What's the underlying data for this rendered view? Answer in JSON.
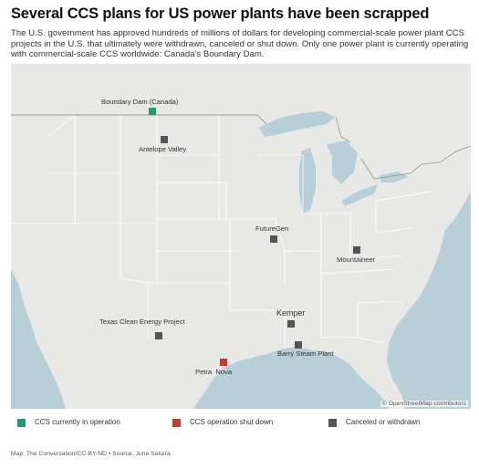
{
  "header": {
    "title": "Several CCS plans for US power plants have been scrapped",
    "subtitle": "The U.S. government has approved hundreds of millions of dollars for developing commercial-scale power plant CCS projects in the U.S. that ultimately were withdrawn, canceled or shut down. Only one power plant is currently operating with commercial-scale CCS worldwide: Canada's Boundary Dam."
  },
  "colors": {
    "operating": "#1a9e6e",
    "shut_down": "#d6362a",
    "canceled": "#555555",
    "land": "#e8e8e6",
    "water": "#b9cfd8"
  },
  "map": {
    "attribution": "© OpenStreetMap contributors",
    "plants": [
      {
        "name": "Boundary Dam (Canada)",
        "status": "operating"
      },
      {
        "name": "Antelope Valley",
        "status": "canceled"
      },
      {
        "name": "FutureGen",
        "status": "canceled"
      },
      {
        "name": "Mountaineer",
        "status": "canceled"
      },
      {
        "name": "Kemper",
        "status": "canceled"
      },
      {
        "name": "Texas Clean Energy Project",
        "status": "canceled"
      },
      {
        "name": "Barry Steam Plant",
        "status": "canceled"
      },
      {
        "name": "Petra  Nova",
        "status": "shut_down"
      }
    ]
  },
  "legend": [
    {
      "label": "CCS currently in operation",
      "status": "operating"
    },
    {
      "label": "CCS operation shut down",
      "status": "shut_down"
    },
    {
      "label": "Canceled or withdrawn",
      "status": "canceled"
    }
  ],
  "footer": {
    "source": "Map: The Conversation/CC-BY-ND • Source: June Sekera"
  }
}
